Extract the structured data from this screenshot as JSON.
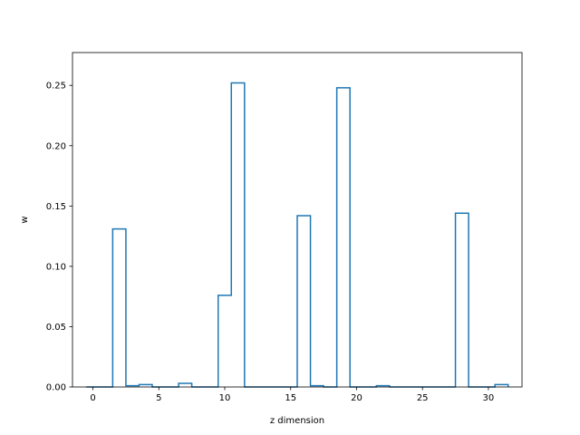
{
  "chart_data": {
    "type": "bar",
    "style": "step-histogram",
    "title": "",
    "xlabel": "z dimension",
    "ylabel": "w",
    "x": [
      0,
      1,
      2,
      3,
      4,
      5,
      6,
      7,
      8,
      9,
      10,
      11,
      12,
      13,
      14,
      15,
      16,
      17,
      18,
      19,
      20,
      21,
      22,
      23,
      24,
      25,
      26,
      27,
      28,
      29,
      30,
      31
    ],
    "values": [
      0.0,
      0.0,
      0.131,
      0.001,
      0.002,
      0.0,
      0.0,
      0.003,
      0.0,
      0.0,
      0.076,
      0.252,
      0.0,
      0.0,
      0.0,
      0.0,
      0.142,
      0.001,
      0.0,
      0.248,
      0.0,
      0.0,
      0.001,
      0.0,
      0.0,
      0.0,
      0.0,
      0.0,
      0.144,
      0.0,
      0.0,
      0.002
    ],
    "xlim": [
      -1.55,
      32.55
    ],
    "ylim": [
      0,
      0.2772
    ],
    "xticks": [
      0,
      5,
      10,
      15,
      20,
      25,
      30
    ],
    "yticks": [
      0.0,
      0.05,
      0.1,
      0.15,
      0.2,
      0.25
    ],
    "ytick_labels": [
      "0.00",
      "0.05",
      "0.10",
      "0.15",
      "0.20",
      "0.25"
    ],
    "grid": false,
    "color": "#1f77b4"
  }
}
